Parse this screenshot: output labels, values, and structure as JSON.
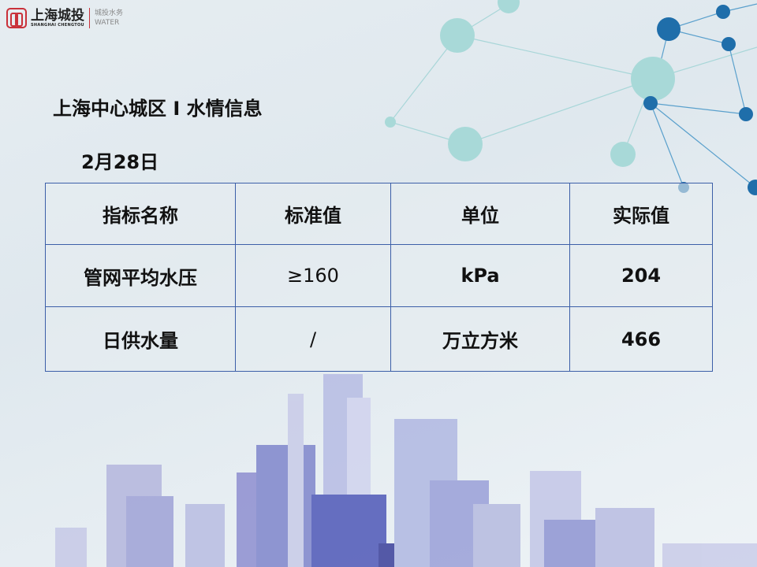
{
  "logo": {
    "name_cn": "上海城投",
    "name_en": "SHANGHAI CHENGTOU",
    "division_cn": "城投水务",
    "division_en": "WATER",
    "brand_color": "#c9313a"
  },
  "title": "上海中心城区 I 水情信息",
  "date": "2月28日",
  "table": {
    "headers": [
      "指标名称",
      "标准值",
      "单位",
      "实际值"
    ],
    "rows": [
      [
        "管网平均水压",
        "≥160",
        "kPa",
        "204"
      ],
      [
        "日供水量",
        "/",
        "万立方米",
        "466"
      ]
    ],
    "border_color": "#3c5fa8"
  }
}
